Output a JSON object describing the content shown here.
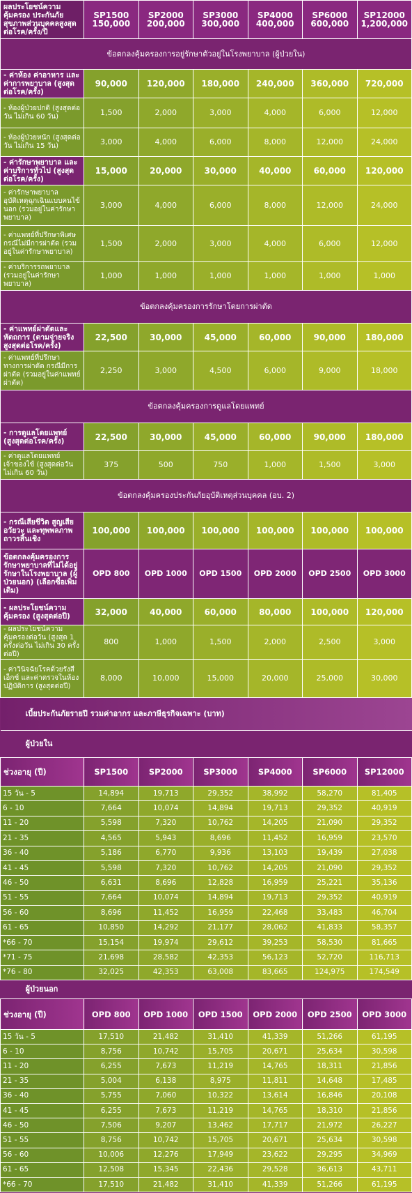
{
  "header": {
    "title": "ผลประโยชน์ความคุ้มครอง ประกันภัยสุขภาพส่วนบุคคลสูงสุด ต่อโรค/ครั้ง/ปี",
    "plans": [
      {
        "name": "SP1500",
        "amount": "150,000"
      },
      {
        "name": "SP2000",
        "amount": "200,000"
      },
      {
        "name": "SP3000",
        "amount": "300,000"
      },
      {
        "name": "SP4000",
        "amount": "400,000"
      },
      {
        "name": "SP6000",
        "amount": "600,000"
      },
      {
        "name": "SP12000",
        "amount": "1,200,000"
      }
    ]
  },
  "benefits": [
    {
      "kind": "section",
      "label": "ข้อตกลงคุ้มครองการอยู่รักษาตัวอยู่ในโรงพยาบาล (ผู้ป่วยใน)"
    },
    {
      "kind": "main",
      "label": "- ค่าห้อง ค่าอาหาร และค่าการพยาบาล (สูงสุดต่อโรค/ครั้ง)",
      "values": [
        "90,000",
        "120,000",
        "180,000",
        "240,000",
        "360,000",
        "720,000"
      ]
    },
    {
      "kind": "sub",
      "label": "- ห้องผู้ป่วยปกติ (สูงสุดต่อวัน ไม่เกิน 60 วัน)",
      "values": [
        "1,500",
        "2,000",
        "3,000",
        "4,000",
        "6,000",
        "12,000"
      ]
    },
    {
      "kind": "sub",
      "label": "- ห้องผู้ป่วยหนัก (สูงสุดต่อวัน ไม่เกิน 15 วัน)",
      "values": [
        "3,000",
        "4,000",
        "6,000",
        "8,000",
        "12,000",
        "24,000"
      ]
    },
    {
      "kind": "main",
      "label": "- ค่ารักษาพยาบาล และค่าบริการทั่วไป (สูงสุดต่อโรค/ครั้ง)",
      "values": [
        "15,000",
        "20,000",
        "30,000",
        "40,000",
        "60,000",
        "120,000"
      ]
    },
    {
      "kind": "sub",
      "label": "- ค่ารักษาพยาบาลอุบัติเหตุฉุกเฉินแบบคนไข้นอก (รวมอยู่ในค่ารักษาพยาบาล)",
      "values": [
        "3,000",
        "4,000",
        "6,000",
        "8,000",
        "12,000",
        "24,000"
      ]
    },
    {
      "kind": "sub",
      "label": "- ค่าแพทย์ที่ปรึกษาพิเศษ กรณีไม่มีการผ่าตัด (รวมอยู่ในค่ารักษาพยาบาล)",
      "values": [
        "1,500",
        "2,000",
        "3,000",
        "4,000",
        "6,000",
        "12,000"
      ]
    },
    {
      "kind": "sub",
      "label": "- ค่าบริการรถพยาบาล (รวมอยู่ในค่ารักษาพยาบาล)",
      "values": [
        "1,000",
        "1,000",
        "1,000",
        "1,000",
        "1,000",
        "1,000"
      ]
    },
    {
      "kind": "section",
      "label": "ข้อตกลงคุ้มครองการรักษาโดยการผ่าตัด"
    },
    {
      "kind": "main",
      "label": "- ค่าแพทย์ผ่าตัดและหัตถการ (ตามจ่ายจริง สูงสุดต่อโรค/ครั้ง)",
      "values": [
        "22,500",
        "30,000",
        "45,000",
        "60,000",
        "90,000",
        "180,000"
      ]
    },
    {
      "kind": "sub",
      "label": "- ค่าแพทย์ที่ปรึกษาทางการผ่าตัด กรณีมีการผ่าตัด (รวมอยู่ในค่าแพทย์ผ่าตัด)",
      "values": [
        "2,250",
        "3,000",
        "4,500",
        "6,000",
        "9,000",
        "18,000"
      ]
    },
    {
      "kind": "section",
      "label": "ข้อตกลงคุ้มครองการดูแลโดยแพทย์"
    },
    {
      "kind": "main",
      "label": "- การดูแลโดยแพทย์ (สูงสุดต่อโรค/ครั้ง)",
      "values": [
        "22,500",
        "30,000",
        "45,000",
        "60,000",
        "90,000",
        "180,000"
      ]
    },
    {
      "kind": "sub",
      "label": "- ค่าดูแลโดยแพทย์เจ้าของไข้ (สูงสุดต่อวัน ไม่เกิน 60 วัน)",
      "values": [
        "375",
        "500",
        "750",
        "1,000",
        "1,500",
        "3,000"
      ]
    },
    {
      "kind": "section",
      "label": "ข้อตกลงคุ้มครองประกันภัยอุบัติเหตุส่วนบุคคล (อบ. 2)"
    },
    {
      "kind": "main",
      "label": "- กรณีเสียชีวิต สูญเสียอวัยวะ และทุพพลภาพถาวรสิ้นเชิง",
      "values": [
        "100,000",
        "100,000",
        "100,000",
        "100,000",
        "100,000",
        "100,000"
      ]
    },
    {
      "kind": "plan",
      "label": "ข้อตกลงคุ้มครองการรักษาพยาบาลที่ไม่ได้อยู่รักษาในโรงพยาบาล (ผู้ป่วยนอก) (เลือกซื้อเพิ่มเติม)",
      "values": [
        "OPD 800",
        "OPD 1000",
        "OPD 1500",
        "OPD 2000",
        "OPD 2500",
        "OPD 3000"
      ]
    },
    {
      "kind": "main",
      "label": "- ผลประโยชน์ความคุ้มครอง (สูงสุดต่อปี)",
      "values": [
        "32,000",
        "40,000",
        "60,000",
        "80,000",
        "100,000",
        "120,000"
      ]
    },
    {
      "kind": "sub",
      "label": "- ผลประโยชน์ความคุ้มครองต่อวัน (สูงสุด 1 ครั้งต่อวัน ไม่เกิน 30 ครั้งต่อปี)",
      "values": [
        "800",
        "1,000",
        "1,500",
        "2,000",
        "2,500",
        "3,000"
      ]
    },
    {
      "kind": "sub",
      "label": "- ค่าวินิจฉัยโรคด้วยรังสีเอ็กซ์ และค่าตรวจในห้องปฏิบัติการ (สูงสุดต่อปี)",
      "values": [
        "8,000",
        "10,000",
        "15,000",
        "20,000",
        "25,000",
        "30,000"
      ]
    }
  ],
  "premiums": {
    "title": "เบี้ยประกันภัยรายปี รวมค่าอากร และภาษีธุรกิจเฉพาะ (บาท)",
    "tables": [
      {
        "title": "ผู้ป่วยใน",
        "header": [
          "ช่วงอายุ (ปี)",
          "SP1500",
          "SP2000",
          "SP3000",
          "SP4000",
          "SP6000",
          "SP12000"
        ],
        "rows": [
          [
            "15 วัน - 5",
            "14,894",
            "19,713",
            "29,352",
            "38,992",
            "58,270",
            "81,405"
          ],
          [
            "6 - 10",
            "7,664",
            "10,074",
            "14,894",
            "19,713",
            "29,352",
            "40,919"
          ],
          [
            "11 - 20",
            "5,598",
            "7,320",
            "10,762",
            "14,205",
            "21,090",
            "29,352"
          ],
          [
            "21 - 35",
            "4,565",
            "5,943",
            "8,696",
            "11,452",
            "16,959",
            "23,570"
          ],
          [
            "36 - 40",
            "5,186",
            "6,770",
            "9,936",
            "13,103",
            "19,439",
            "27,038"
          ],
          [
            "41 - 45",
            "5,598",
            "7,320",
            "10,762",
            "14,205",
            "21,090",
            "29,352"
          ],
          [
            "46 - 50",
            "6,631",
            "8,696",
            "12,828",
            "16,959",
            "25,221",
            "35,136"
          ],
          [
            "51 - 55",
            "7,664",
            "10,074",
            "14,894",
            "19,713",
            "29,352",
            "40,919"
          ],
          [
            "56 - 60",
            "8,696",
            "11,452",
            "16,959",
            "22,468",
            "33,483",
            "46,704"
          ],
          [
            "61 - 65",
            "10,850",
            "14,292",
            "21,177",
            "28,062",
            "41,833",
            "58,357"
          ],
          [
            "*66 - 70",
            "15,154",
            "19,974",
            "29,612",
            "39,253",
            "58,530",
            "81,665"
          ],
          [
            "*71 - 75",
            "21,698",
            "28,582",
            "42,353",
            "56,123",
            "52,720",
            "116,713"
          ],
          [
            "*76 - 80",
            "32,025",
            "42,353",
            "63,008",
            "83,665",
            "124,975",
            "174,549"
          ]
        ]
      },
      {
        "title": "ผู้ป่วยนอก",
        "header": [
          "ช่วงอายุ (ปี)",
          "OPD 800",
          "OPD 1000",
          "OPD 1500",
          "OPD 2000",
          "OPD 2500",
          "OPD 3000"
        ],
        "rows": [
          [
            "15 วัน - 5",
            "17,510",
            "21,482",
            "31,410",
            "41,339",
            "51,266",
            "61,195"
          ],
          [
            "6 - 10",
            "8,756",
            "10,742",
            "15,705",
            "20,671",
            "25,634",
            "30,598"
          ],
          [
            "11 - 20",
            "6,255",
            "7,673",
            "11,219",
            "14,765",
            "18,311",
            "21,856"
          ],
          [
            "21 - 35",
            "5,004",
            "6,138",
            "8,975",
            "11,811",
            "14,648",
            "17,485"
          ],
          [
            "36 - 40",
            "5,755",
            "7,060",
            "10,322",
            "13,614",
            "16,846",
            "20,108"
          ],
          [
            "41 - 45",
            "6,255",
            "7,673",
            "11,219",
            "14,765",
            "18,310",
            "21,856"
          ],
          [
            "46 - 50",
            "7,506",
            "9,207",
            "13,462",
            "17,717",
            "21,972",
            "26,227"
          ],
          [
            "51 - 55",
            "8,756",
            "10,742",
            "15,705",
            "20,671",
            "25,634",
            "30,598"
          ],
          [
            "56 - 60",
            "10,006",
            "12,276",
            "17,949",
            "23,622",
            "29,295",
            "34,969"
          ],
          [
            "61 - 65",
            "12,508",
            "15,345",
            "22,436",
            "29,528",
            "36,613",
            "43,711"
          ],
          [
            "*66 - 70",
            "17,510",
            "21,482",
            "31,410",
            "41,339",
            "51,266",
            "61,195"
          ]
        ]
      }
    ]
  }
}
